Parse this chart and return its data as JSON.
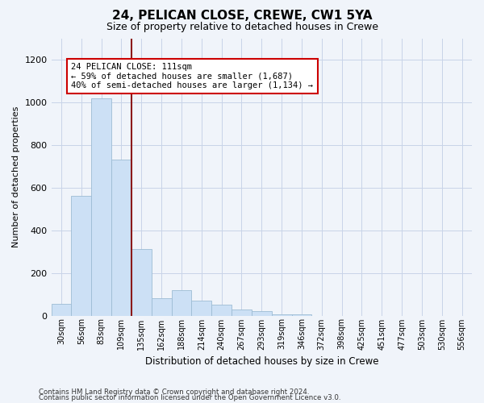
{
  "title1": "24, PELICAN CLOSE, CREWE, CW1 5YA",
  "title2": "Size of property relative to detached houses in Crewe",
  "xlabel": "Distribution of detached houses by size in Crewe",
  "ylabel": "Number of detached properties",
  "categories": [
    "30sqm",
    "56sqm",
    "83sqm",
    "109sqm",
    "135sqm",
    "162sqm",
    "188sqm",
    "214sqm",
    "240sqm",
    "267sqm",
    "293sqm",
    "319sqm",
    "346sqm",
    "372sqm",
    "398sqm",
    "425sqm",
    "451sqm",
    "477sqm",
    "503sqm",
    "530sqm",
    "556sqm"
  ],
  "values": [
    55,
    560,
    1020,
    730,
    310,
    80,
    120,
    70,
    50,
    30,
    20,
    5,
    5,
    0,
    0,
    0,
    0,
    0,
    0,
    0,
    0
  ],
  "bar_color": "#cce0f5",
  "bar_edge_color": "#9dbcd4",
  "vline_x": 3.5,
  "vline_color": "#8b1a1a",
  "annotation_text": "24 PELICAN CLOSE: 111sqm\n← 59% of detached houses are smaller (1,687)\n40% of semi-detached houses are larger (1,134) →",
  "annotation_box_color": "white",
  "annotation_box_edge_color": "#cc0000",
  "ylim": [
    0,
    1300
  ],
  "yticks": [
    0,
    200,
    400,
    600,
    800,
    1000,
    1200
  ],
  "footer1": "Contains HM Land Registry data © Crown copyright and database right 2024.",
  "footer2": "Contains public sector information licensed under the Open Government Licence v3.0.",
  "bg_color": "#f0f4fa",
  "grid_color": "#c8d4e8",
  "title1_fontsize": 11,
  "title2_fontsize": 9
}
